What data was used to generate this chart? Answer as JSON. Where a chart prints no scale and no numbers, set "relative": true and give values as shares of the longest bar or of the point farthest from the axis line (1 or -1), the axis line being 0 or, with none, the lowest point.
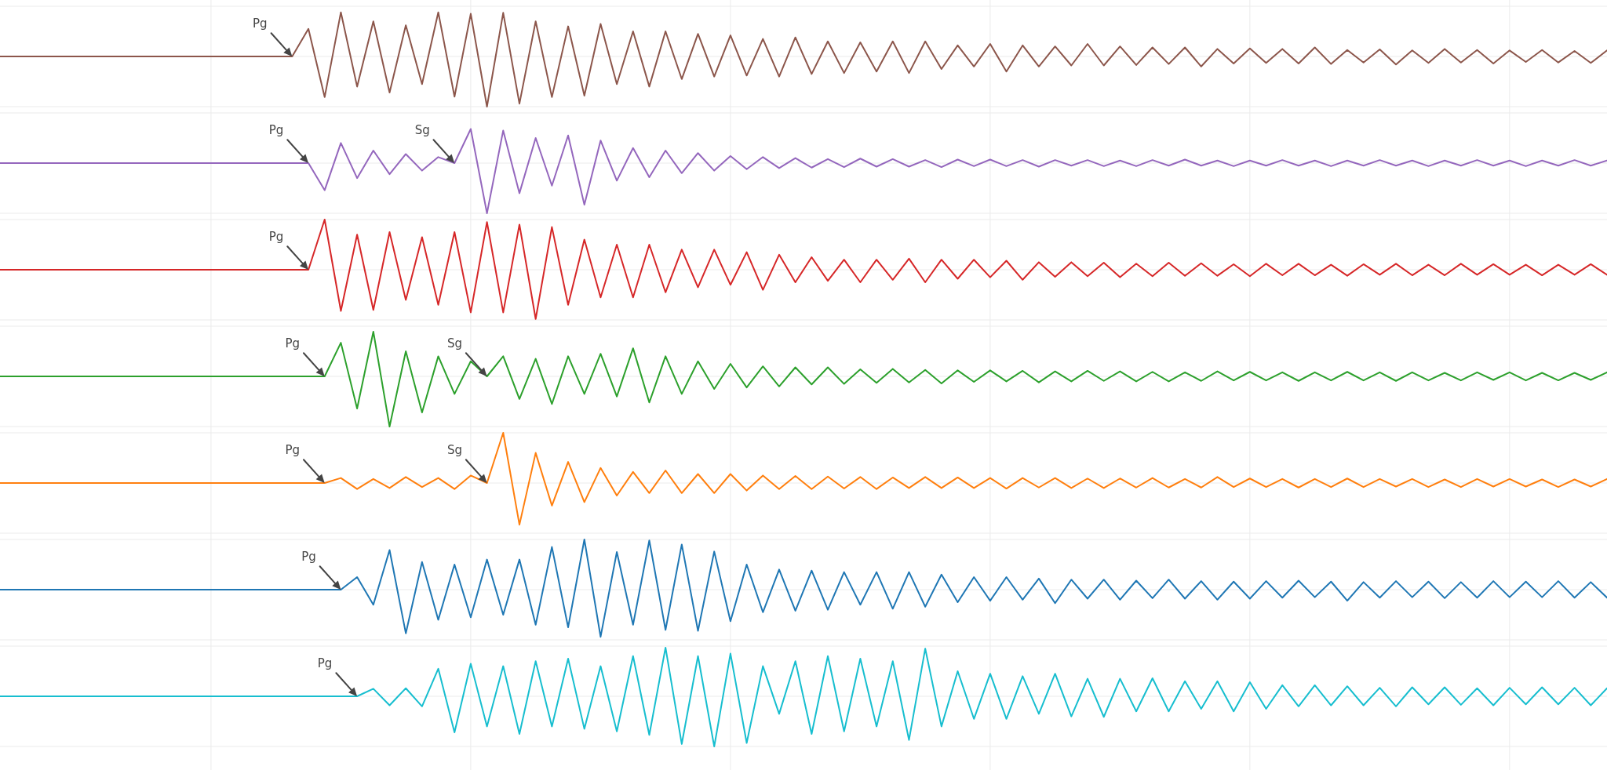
{
  "chart_data": [
    {
      "type": "line",
      "relative": true,
      "grid": true,
      "categories": [
        null,
        null,
        null,
        null,
        null,
        null,
        null,
        null,
        null,
        null,
        null,
        null,
        null,
        null,
        null,
        null,
        null,
        null,
        null,
        null,
        null,
        null,
        null,
        null,
        null,
        null,
        null,
        null,
        null,
        null,
        null,
        null,
        null,
        null,
        null,
        null,
        null,
        null,
        null,
        null,
        null,
        null,
        null,
        null,
        null,
        null,
        null,
        null,
        null,
        null,
        null,
        null,
        null,
        null,
        null,
        null,
        null,
        null,
        null,
        null,
        null,
        null,
        null,
        null,
        null,
        null,
        null,
        null,
        null,
        null,
        null,
        null,
        null,
        null,
        null,
        null,
        null,
        null,
        null,
        null,
        null,
        null,
        null,
        null,
        null,
        null,
        null,
        null,
        null,
        null,
        null,
        null,
        null,
        null,
        null,
        null,
        null,
        null,
        null,
        null
      ],
      "series": [
        {
          "color": "#8c564b",
          "values": [
            0,
            0,
            0,
            0,
            0,
            0,
            0,
            0,
            0,
            0,
            0,
            0,
            0,
            0,
            0,
            0,
            0,
            0,
            0,
            0.55,
            -0.81,
            0.88,
            -0.6,
            0.7,
            -0.72,
            0.62,
            -0.55,
            0.88,
            -0.8,
            0.85,
            -1,
            0.87,
            -0.94,
            0.7,
            -0.81,
            0.6,
            -0.78,
            0.65,
            -0.55,
            0.5,
            -0.6,
            0.5,
            -0.45,
            0.45,
            -0.4,
            0.42,
            -0.38,
            0.35,
            -0.4,
            0.38,
            -0.35,
            0.3,
            -0.33,
            0.28,
            -0.3,
            0.3,
            -0.33,
            0.3,
            -0.25,
            0.22,
            -0.2,
            0.25,
            -0.3,
            0.22,
            -0.2,
            0.2,
            -0.18,
            0.25,
            -0.18,
            0.2,
            -0.17,
            0.18,
            -0.15,
            0.18,
            -0.2,
            0.15,
            -0.14,
            0.16,
            -0.13,
            0.15,
            -0.14,
            0.18,
            -0.15,
            0.13,
            -0.12,
            0.14,
            -0.16,
            0.12,
            -0.13,
            0.15,
            -0.12,
            0.13,
            -0.14,
            0.12,
            -0.11,
            0.13,
            -0.12,
            0.11,
            -0.13,
            0.12
          ]
        }
      ],
      "annotations": [
        {
          "text": "Pg",
          "y": 0
        }
      ]
    },
    {
      "type": "line",
      "relative": true,
      "grid": true,
      "categories": [
        null,
        null,
        null,
        null,
        null,
        null,
        null,
        null,
        null,
        null,
        null,
        null,
        null,
        null,
        null,
        null,
        null,
        null,
        null,
        null,
        null,
        null,
        null,
        null,
        null,
        null,
        null,
        null,
        null,
        null,
        null,
        null,
        null,
        null,
        null,
        null,
        null,
        null,
        null,
        null,
        null,
        null,
        null,
        null,
        null,
        null,
        null,
        null,
        null,
        null,
        null,
        null,
        null,
        null,
        null,
        null,
        null,
        null,
        null,
        null,
        null,
        null,
        null,
        null,
        null,
        null,
        null,
        null,
        null,
        null,
        null,
        null,
        null,
        null,
        null,
        null,
        null,
        null,
        null,
        null,
        null,
        null,
        null,
        null,
        null,
        null,
        null,
        null,
        null,
        null,
        null,
        null,
        null,
        null,
        null,
        null,
        null,
        null,
        null,
        null
      ],
      "series": [
        {
          "color": "#9467bd",
          "values": [
            0,
            0,
            0,
            0,
            0,
            0,
            0,
            0,
            0,
            0,
            0,
            0,
            0,
            0,
            0,
            0,
            0,
            0,
            0,
            0,
            -0.54,
            0.4,
            -0.3,
            0.25,
            -0.22,
            0.18,
            -0.15,
            0.12,
            0,
            0.68,
            -1,
            0.65,
            -0.6,
            0.5,
            -0.45,
            0.55,
            -0.83,
            0.45,
            -0.35,
            0.3,
            -0.28,
            0.25,
            -0.2,
            0.2,
            -0.15,
            0.14,
            -0.12,
            0.12,
            -0.1,
            0.1,
            -0.09,
            0.08,
            -0.08,
            0.09,
            -0.07,
            0.08,
            -0.07,
            0.06,
            -0.08,
            0.07,
            -0.06,
            0.07,
            -0.06,
            0.06,
            -0.07,
            0.06,
            -0.05,
            0.06,
            -0.06,
            0.05,
            -0.06,
            0.06,
            -0.05,
            0.07,
            -0.05,
            0.05,
            -0.06,
            0.05,
            -0.05,
            0.06,
            -0.05,
            0.05,
            -0.06,
            0.05,
            -0.05,
            0.06,
            -0.05,
            0.05,
            -0.06,
            0.05,
            -0.05,
            0.06,
            -0.05,
            0.05,
            -0.06,
            0.05,
            -0.05,
            0.06,
            -0.05,
            0.05
          ]
        }
      ],
      "annotations": [
        {
          "text": "Pg",
          "y": 0
        },
        "Sg"
      ]
    },
    {
      "type": "line",
      "relative": true,
      "grid": true,
      "categories": [
        null,
        null,
        null,
        null,
        null,
        null,
        null,
        null,
        null,
        null,
        null,
        null,
        null,
        null,
        null,
        null,
        null,
        null,
        null,
        null,
        null,
        null,
        null,
        null,
        null,
        null,
        null,
        null,
        null,
        null,
        null,
        null,
        null,
        null,
        null,
        null,
        null,
        null,
        null,
        null,
        null,
        null,
        null,
        null,
        null,
        null,
        null,
        null,
        null,
        null,
        null,
        null,
        null,
        null,
        null,
        null,
        null,
        null,
        null,
        null,
        null,
        null,
        null,
        null,
        null,
        null,
        null,
        null,
        null,
        null,
        null,
        null,
        null,
        null,
        null,
        null,
        null,
        null,
        null,
        null,
        null,
        null,
        null,
        null,
        null,
        null,
        null,
        null,
        null,
        null,
        null,
        null,
        null,
        null,
        null,
        null,
        null,
        null,
        null,
        null
      ],
      "series": [
        {
          "color": "#d62728",
          "values": [
            0,
            0,
            0,
            0,
            0,
            0,
            0,
            0,
            0,
            0,
            0,
            0,
            0,
            0,
            0,
            0,
            0,
            0,
            0,
            0,
            1,
            -0.82,
            0.7,
            -0.8,
            0.75,
            -0.6,
            0.65,
            -0.7,
            0.75,
            -0.85,
            0.95,
            -0.85,
            0.9,
            -0.98,
            0.85,
            -0.7,
            0.6,
            -0.55,
            0.5,
            -0.55,
            0.5,
            -0.45,
            0.4,
            -0.35,
            0.4,
            -0.3,
            0.35,
            -0.4,
            0.3,
            -0.25,
            0.25,
            -0.22,
            0.2,
            -0.25,
            0.2,
            -0.2,
            0.22,
            -0.25,
            0.2,
            -0.18,
            0.2,
            -0.15,
            0.18,
            -0.2,
            0.15,
            -0.14,
            0.15,
            -0.13,
            0.14,
            -0.15,
            0.12,
            -0.13,
            0.14,
            -0.12,
            0.13,
            -0.12,
            0.11,
            -0.13,
            0.12,
            -0.11,
            0.12,
            -0.11,
            0.1,
            -0.12,
            0.11,
            -0.1,
            0.12,
            -0.11,
            0.1,
            -0.11,
            0.12,
            -0.1,
            0.11,
            -0.1,
            0.1,
            -0.11,
            0.1,
            -0.1,
            0.11,
            -0.1
          ]
        }
      ],
      "annotations": [
        {
          "text": "Pg",
          "y": 0
        }
      ]
    },
    {
      "type": "line",
      "relative": true,
      "grid": true,
      "categories": [
        null,
        null,
        null,
        null,
        null,
        null,
        null,
        null,
        null,
        null,
        null,
        null,
        null,
        null,
        null,
        null,
        null,
        null,
        null,
        null,
        null,
        null,
        null,
        null,
        null,
        null,
        null,
        null,
        null,
        null,
        null,
        null,
        null,
        null,
        null,
        null,
        null,
        null,
        null,
        null,
        null,
        null,
        null,
        null,
        null,
        null,
        null,
        null,
        null,
        null,
        null,
        null,
        null,
        null,
        null,
        null,
        null,
        null,
        null,
        null,
        null,
        null,
        null,
        null,
        null,
        null,
        null,
        null,
        null,
        null,
        null,
        null,
        null,
        null,
        null,
        null,
        null,
        null,
        null,
        null,
        null,
        null,
        null,
        null,
        null,
        null,
        null,
        null,
        null,
        null,
        null,
        null,
        null,
        null,
        null,
        null,
        null,
        null,
        null,
        null
      ],
      "series": [
        {
          "color": "#2ca02c",
          "values": [
            0,
            0,
            0,
            0,
            0,
            0,
            0,
            0,
            0,
            0,
            0,
            0,
            0,
            0,
            0,
            0,
            0,
            0,
            0,
            0,
            0,
            0.67,
            -0.64,
            0.89,
            -1,
            0.5,
            -0.72,
            0.4,
            -0.35,
            0.3,
            0,
            0.4,
            -0.45,
            0.35,
            -0.55,
            0.4,
            -0.35,
            0.45,
            -0.4,
            0.56,
            -0.52,
            0.4,
            -0.35,
            0.3,
            -0.25,
            0.25,
            -0.22,
            0.2,
            -0.2,
            0.18,
            -0.16,
            0.18,
            -0.15,
            0.14,
            -0.13,
            0.15,
            -0.12,
            0.13,
            -0.14,
            0.12,
            -0.11,
            0.12,
            -0.1,
            0.11,
            -0.12,
            0.1,
            -0.1,
            0.11,
            -0.09,
            0.1,
            -0.1,
            0.09,
            -0.1,
            0.08,
            -0.09,
            0.1,
            -0.08,
            0.09,
            -0.08,
            0.08,
            -0.09,
            0.08,
            -0.08,
            0.09,
            -0.08,
            0.08,
            -0.09,
            0.08,
            -0.08,
            0.07,
            -0.08,
            0.08,
            -0.07,
            0.08,
            -0.08,
            0.07,
            -0.08,
            0.07,
            -0.07,
            0.08
          ]
        }
      ],
      "annotations": [
        {
          "text": "Pg",
          "y": 0
        },
        "Sg"
      ]
    },
    {
      "type": "line",
      "relative": true,
      "grid": true,
      "categories": [
        null,
        null,
        null,
        null,
        null,
        null,
        null,
        null,
        null,
        null,
        null,
        null,
        null,
        null,
        null,
        null,
        null,
        null,
        null,
        null,
        null,
        null,
        null,
        null,
        null,
        null,
        null,
        null,
        null,
        null,
        null,
        null,
        null,
        null,
        null,
        null,
        null,
        null,
        null,
        null,
        null,
        null,
        null,
        null,
        null,
        null,
        null,
        null,
        null,
        null,
        null,
        null,
        null,
        null,
        null,
        null,
        null,
        null,
        null,
        null,
        null,
        null,
        null,
        null,
        null,
        null,
        null,
        null,
        null,
        null,
        null,
        null,
        null,
        null,
        null,
        null,
        null,
        null,
        null,
        null,
        null,
        null,
        null,
        null,
        null,
        null,
        null,
        null,
        null,
        null,
        null,
        null,
        null,
        null,
        null,
        null,
        null,
        null,
        null,
        null
      ],
      "series": [
        {
          "color": "#ff7f0e",
          "values": [
            0,
            0,
            0,
            0,
            0,
            0,
            0,
            0,
            0,
            0,
            0,
            0,
            0,
            0,
            0,
            0,
            0,
            0,
            0,
            0,
            0,
            0.1,
            -0.12,
            0.08,
            -0.1,
            0.12,
            -0.08,
            0.1,
            -0.12,
            0.15,
            0,
            1,
            -0.83,
            0.6,
            -0.45,
            0.42,
            -0.38,
            0.3,
            -0.25,
            0.22,
            -0.2,
            0.25,
            -0.2,
            0.18,
            -0.2,
            0.18,
            -0.15,
            0.15,
            -0.12,
            0.14,
            -0.12,
            0.13,
            -0.11,
            0.12,
            -0.12,
            0.11,
            -0.1,
            0.12,
            -0.1,
            0.11,
            -0.1,
            0.1,
            -0.11,
            0.1,
            -0.09,
            0.1,
            -0.1,
            0.09,
            -0.1,
            0.09,
            -0.09,
            0.1,
            -0.09,
            0.08,
            -0.09,
            0.12,
            -0.08,
            0.09,
            -0.08,
            0.08,
            -0.09,
            0.08,
            -0.08,
            0.09,
            -0.08,
            0.08,
            -0.07,
            0.08,
            -0.08,
            0.07,
            -0.08,
            0.08,
            -0.07,
            0.08,
            -0.07,
            0.07,
            -0.08,
            0.07,
            -0.07,
            0.08
          ]
        }
      ],
      "annotations": [
        {
          "text": "Pg",
          "y": 0
        },
        {
          "text": "Sg",
          "y": 0
        }
      ]
    },
    {
      "type": "line",
      "relative": true,
      "grid": true,
      "categories": [
        null,
        null,
        null,
        null,
        null,
        null,
        null,
        null,
        null,
        null,
        null,
        null,
        null,
        null,
        null,
        null,
        null,
        null,
        null,
        null,
        null,
        null,
        null,
        null,
        null,
        null,
        null,
        null,
        null,
        null,
        null,
        null,
        null,
        null,
        null,
        null,
        null,
        null,
        null,
        null,
        null,
        null,
        null,
        null,
        null,
        null,
        null,
        null,
        null,
        null,
        null,
        null,
        null,
        null,
        null,
        null,
        null,
        null,
        null,
        null,
        null,
        null,
        null,
        null,
        null,
        null,
        null,
        null,
        null,
        null,
        null,
        null,
        null,
        null,
        null,
        null,
        null,
        null,
        null,
        null,
        null,
        null,
        null,
        null,
        null,
        null,
        null,
        null,
        null,
        null,
        null,
        null,
        null,
        null,
        null,
        null,
        null,
        null,
        null,
        null
      ],
      "series": [
        {
          "color": "#1f77b4",
          "values": [
            0,
            0,
            0,
            0,
            0,
            0,
            0,
            0,
            0,
            0,
            0,
            0,
            0,
            0,
            0,
            0,
            0,
            0,
            0,
            0,
            0,
            0,
            0.25,
            -0.3,
            0.79,
            -0.87,
            0.55,
            -0.6,
            0.5,
            -0.55,
            0.6,
            -0.5,
            0.6,
            -0.7,
            0.85,
            -0.75,
            1,
            -0.94,
            0.75,
            -0.7,
            0.98,
            -0.8,
            0.9,
            -0.82,
            0.76,
            -0.63,
            0.5,
            -0.45,
            0.4,
            -0.42,
            0.38,
            -0.4,
            0.35,
            -0.3,
            0.35,
            -0.38,
            0.35,
            -0.34,
            0.3,
            -0.25,
            0.25,
            -0.22,
            0.25,
            -0.2,
            0.22,
            -0.27,
            0.2,
            -0.18,
            0.2,
            -0.2,
            0.18,
            -0.17,
            0.2,
            -0.18,
            0.17,
            -0.2,
            0.16,
            -0.18,
            0.17,
            -0.16,
            0.18,
            -0.15,
            0.16,
            -0.22,
            0.15,
            -0.16,
            0.17,
            -0.15,
            0.16,
            -0.17,
            0.15,
            -0.16,
            0.17,
            -0.15,
            0.16,
            -0.15,
            0.17,
            -0.16,
            0.15,
            -0.16
          ]
        }
      ],
      "annotations": [
        {
          "text": "Pg",
          "y": 0
        }
      ]
    },
    {
      "type": "line",
      "relative": true,
      "grid": true,
      "categories": [
        null,
        null,
        null,
        null,
        null,
        null,
        null,
        null,
        null,
        null,
        null,
        null,
        null,
        null,
        null,
        null,
        null,
        null,
        null,
        null,
        null,
        null,
        null,
        null,
        null,
        null,
        null,
        null,
        null,
        null,
        null,
        null,
        null,
        null,
        null,
        null,
        null,
        null,
        null,
        null,
        null,
        null,
        null,
        null,
        null,
        null,
        null,
        null,
        null,
        null,
        null,
        null,
        null,
        null,
        null,
        null,
        null,
        null,
        null,
        null,
        null,
        null,
        null,
        null,
        null,
        null,
        null,
        null,
        null,
        null,
        null,
        null,
        null,
        null,
        null,
        null,
        null,
        null,
        null,
        null,
        null,
        null,
        null,
        null,
        null,
        null,
        null,
        null,
        null,
        null,
        null,
        null,
        null,
        null,
        null,
        null,
        null,
        null,
        null,
        null
      ],
      "series": [
        {
          "color": "#17becf",
          "values": [
            0,
            0,
            0,
            0,
            0,
            0,
            0,
            0,
            0,
            0,
            0,
            0,
            0,
            0,
            0,
            0,
            0,
            0,
            0,
            0,
            0,
            0,
            0,
            0.15,
            -0.18,
            0.16,
            -0.2,
            0.55,
            -0.72,
            0.65,
            -0.6,
            0.6,
            -0.75,
            0.7,
            -0.6,
            0.75,
            -0.65,
            0.6,
            -0.7,
            0.8,
            -0.77,
            0.97,
            -0.95,
            0.8,
            -1,
            0.85,
            -0.93,
            0.6,
            -0.35,
            0.7,
            -0.75,
            0.8,
            -0.7,
            0.75,
            -0.6,
            0.7,
            -0.87,
            0.95,
            -0.6,
            0.5,
            -0.45,
            0.45,
            -0.45,
            0.4,
            -0.35,
            0.45,
            -0.4,
            0.35,
            -0.41,
            0.35,
            -0.3,
            0.36,
            -0.3,
            0.3,
            -0.25,
            0.3,
            -0.3,
            0.28,
            -0.25,
            0.22,
            -0.2,
            0.22,
            -0.18,
            0.2,
            -0.18,
            0.17,
            -0.2,
            0.18,
            -0.16,
            0.18,
            -0.17,
            0.16,
            -0.18,
            0.17,
            -0.16,
            0.18,
            -0.16,
            0.17,
            -0.18,
            0.16
          ]
        }
      ],
      "annotations": [
        {
          "text": "Pg",
          "y": 0
        }
      ]
    }
  ]
}
